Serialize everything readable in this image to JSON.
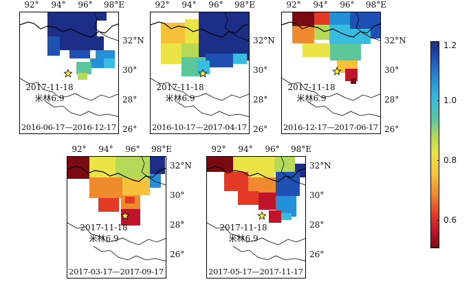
{
  "panels": [
    {
      "period": "2016-06-17—2016-12-17",
      "event_date": "2017-11-18",
      "event_name": "米林6.9"
    },
    {
      "period": "2016-10-17—2017-04-17",
      "event_date": "2017-11-18",
      "event_name": "米林6.9"
    },
    {
      "period": "2016-12-17—2017-06-17",
      "event_date": "2017-11-18",
      "event_name": "米林6.9"
    },
    {
      "period": "2017-03-17—2017-09-17",
      "event_date": "2017-11-18",
      "event_name": "米林6.9"
    },
    {
      "period": "2017-05-17—2017-11-17",
      "event_date": "2017-11-18",
      "event_name": "米林6.9"
    }
  ],
  "lon_ticks": [
    "92°",
    "94°",
    "96°",
    "98°E"
  ],
  "lat_ticks": [
    "32°N",
    "30°",
    "28°",
    "26°"
  ],
  "colorbar": {
    "ticks": [
      "1.2",
      "1.0",
      "0.8",
      "0.6"
    ],
    "min": 0.5,
    "max": 1.2,
    "colors": [
      "#7a0a12",
      "#c0142a",
      "#e23a25",
      "#f08a2e",
      "#f6c23a",
      "#eae447",
      "#b4da57",
      "#5bc79a",
      "#38bde0",
      "#2490d8",
      "#1f50b4",
      "#1c2e85"
    ]
  },
  "epicenter_marker_color": "#ffef3a"
}
